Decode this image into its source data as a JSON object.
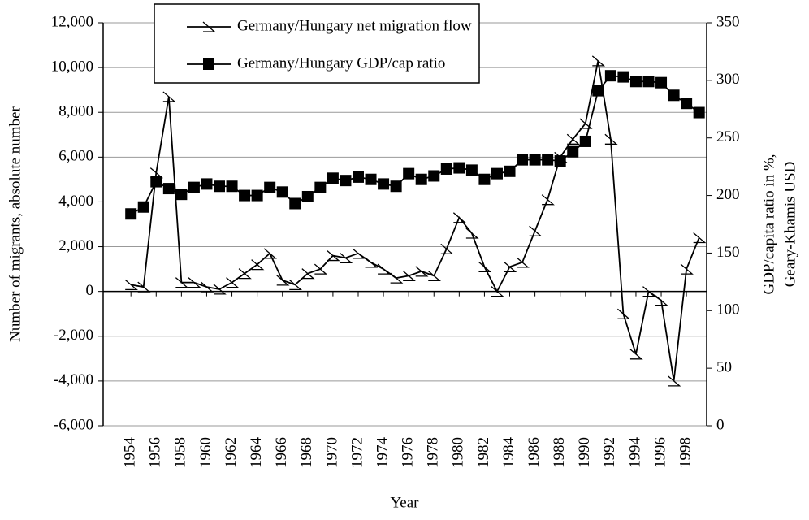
{
  "chart_data": {
    "type": "line",
    "xlabel": "Year",
    "ylabel": "Number of migrants, absolute number",
    "y2label": [
      "GDP/capita ratio in %,",
      "Geary-Khamis USD"
    ],
    "x": [
      1954,
      1955,
      1956,
      1957,
      1958,
      1959,
      1960,
      1961,
      1962,
      1963,
      1964,
      1965,
      1966,
      1967,
      1968,
      1969,
      1970,
      1971,
      1972,
      1973,
      1974,
      1975,
      1976,
      1977,
      1978,
      1979,
      1980,
      1981,
      1982,
      1983,
      1984,
      1985,
      1986,
      1987,
      1988,
      1989,
      1990,
      1991,
      1992,
      1993,
      1994,
      1995,
      1996,
      1997,
      1998,
      1999
    ],
    "xlim": [
      1951.8,
      1999.6
    ],
    "xticks": [
      1954,
      1956,
      1958,
      1960,
      1962,
      1964,
      1966,
      1968,
      1970,
      1972,
      1974,
      1976,
      1978,
      1980,
      1982,
      1984,
      1986,
      1988,
      1990,
      1992,
      1994,
      1996,
      1998
    ],
    "ylim": [
      -6000,
      12000
    ],
    "yticks": [
      {
        "value": -6000,
        "label": "-6,000"
      },
      {
        "value": -4000,
        "label": "-4,000"
      },
      {
        "value": -2000,
        "label": "-2,000"
      },
      0,
      {
        "value": 2000,
        "label": "2,000"
      },
      {
        "value": 4000,
        "label": "4,000"
      },
      {
        "value": 6000,
        "label": "6,000"
      },
      {
        "value": 8000,
        "label": "8,000"
      },
      {
        "value": 10000,
        "label": "10,000"
      },
      {
        "value": 12000,
        "label": "12,000"
      }
    ],
    "y2lim": [
      0,
      350
    ],
    "y2ticks": [
      0,
      50,
      100,
      150,
      200,
      250,
      300,
      350
    ],
    "grid": true,
    "legend": "upper center",
    "series": [
      {
        "name": "Germany/Hungary  net migration flow",
        "color": "#000000",
        "marker": "hook",
        "values": [
          300,
          200,
          5300,
          8700,
          400,
          400,
          200,
          100,
          400,
          800,
          1200,
          1700,
          500,
          300,
          800,
          1000,
          1600,
          1500,
          1700,
          1300,
          1000,
          600,
          700,
          900,
          700,
          1900,
          3300,
          2600,
          1100,
          0,
          1100,
          1300,
          2700,
          4100,
          6000,
          6800,
          7500,
          10300,
          6800,
          -1000,
          -2800,
          0,
          -400,
          -4000,
          1000,
          2400
        ]
      },
      {
        "name": "Germany/Hungary  GDP/cap ratio",
        "color": "#000000",
        "marker": "square",
        "axis": "y2",
        "values": [
          184,
          190,
          212,
          206,
          201,
          207,
          210,
          208,
          208,
          200,
          200,
          207,
          203,
          193,
          199,
          207,
          215,
          213,
          216,
          214,
          210,
          208,
          219,
          214,
          217,
          223,
          224,
          222,
          214,
          219,
          221,
          231,
          231,
          231,
          230,
          238,
          247,
          291,
          304,
          303,
          299,
          299,
          298,
          287,
          280,
          272
        ]
      }
    ]
  }
}
